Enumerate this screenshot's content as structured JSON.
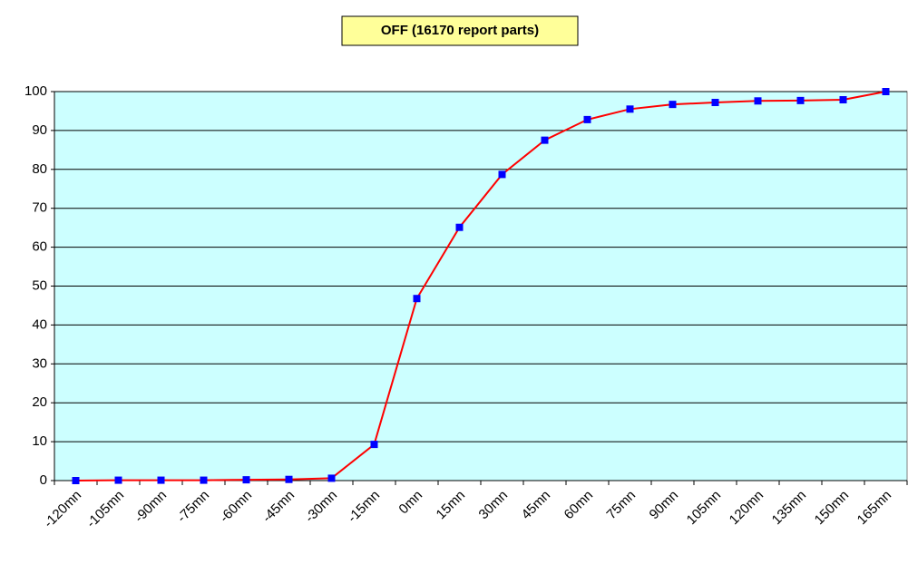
{
  "chart_data": {
    "type": "line",
    "title": "OFF (16170 report parts)",
    "categories": [
      "-120mn",
      "-105mn",
      "-90mn",
      "-75mn",
      "-60mn",
      "-45mn",
      "-30mn",
      "-15mn",
      "0mn",
      "15mn",
      "30mn",
      "45mn",
      "60mn",
      "75mn",
      "90mn",
      "105mn",
      "120mn",
      "135mn",
      "150mn",
      "165mn"
    ],
    "series": [
      {
        "name": "OFF",
        "color": "#ff0000",
        "marker_color": "#0000ff",
        "values": [
          0,
          0.1,
          0.1,
          0.1,
          0.2,
          0.3,
          0.6,
          9.3,
          46.8,
          65.1,
          78.7,
          87.5,
          92.8,
          95.5,
          96.7,
          97.2,
          97.6,
          97.7,
          97.9,
          100
        ]
      }
    ],
    "ylim": [
      0,
      100
    ],
    "yticks": [
      0,
      10,
      20,
      30,
      40,
      50,
      60,
      70,
      80,
      90,
      100
    ],
    "grid": true,
    "background": "#ccffff"
  }
}
